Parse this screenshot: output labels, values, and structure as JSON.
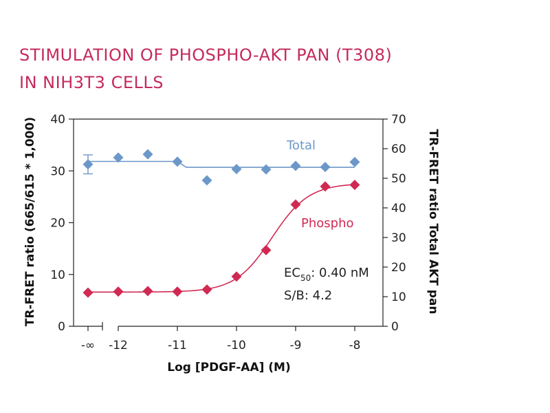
{
  "title_lines": [
    "STIMULATION OF PHOSPHO-AKT PAN (T308)",
    "IN NIH3T3 CELLS"
  ],
  "chart_data": {
    "type": "scatter",
    "x_ticks": [
      "-∞",
      "-12",
      "-11",
      "-10",
      "-9",
      "-8"
    ],
    "x_break_after": "-∞",
    "xlabel": "Log [PDGF-AA] (M)",
    "ylabel": "TR-FRET ratio (665/615 * 1,000)",
    "ylim": [
      0,
      40
    ],
    "y_ticks": [
      "0",
      "10",
      "20",
      "30",
      "40"
    ],
    "y2label": "TR-FRET ratio Total AKT pan",
    "y2lim": [
      0,
      70
    ],
    "y2_ticks": [
      "0",
      "10",
      "20",
      "30",
      "40",
      "50",
      "60",
      "70"
    ],
    "grid": false,
    "series": [
      {
        "name": "Total",
        "axis": "right",
        "color": "#6c97c9",
        "marker": "diamond",
        "x": [
          "-∞",
          -12,
          -11.5,
          -11,
          -10.5,
          -10,
          -9.5,
          -9,
          -8.5,
          -8
        ],
        "y": [
          54.7,
          57.0,
          58.1,
          55.6,
          49.3,
          53.1,
          53.0,
          54.2,
          53.8,
          55.5
        ],
        "error": [
          3.2,
          0,
          0,
          0,
          0,
          0,
          0,
          0,
          0,
          0
        ],
        "fit": {
          "type": "step",
          "x": [
            "-∞",
            -12,
            -11,
            -10.85,
            -8
          ],
          "y": [
            55.7,
            55.7,
            55.7,
            53.7,
            53.7
          ]
        }
      },
      {
        "name": "Phospho",
        "axis": "left",
        "color": "#d02a52",
        "marker": "diamond",
        "x": [
          "-∞",
          -12,
          -11.5,
          -11,
          -10.5,
          -10,
          -9.5,
          -9,
          -8.5,
          -8
        ],
        "y": [
          6.5,
          6.7,
          6.8,
          6.7,
          7.1,
          9.6,
          14.7,
          23.5,
          27.0,
          27.3
        ],
        "fit": {
          "type": "sigmoid",
          "bottom": 6.6,
          "top": 27.6,
          "log_ec50": -9.4,
          "hill": 1.4
        }
      }
    ],
    "annotations": {
      "ec50_prefix": "EC",
      "ec50_subscript": "50",
      "ec50_value": ": 0.40 nM",
      "sb": "S/B: 4.2"
    }
  }
}
